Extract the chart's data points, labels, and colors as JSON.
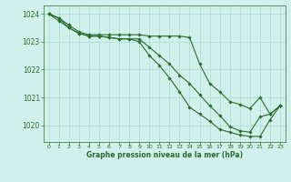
{
  "title": "Graphe pression niveau de la mer (hPa)",
  "background_color": "#cff0eb",
  "grid_color": "#aaddd6",
  "line_color": "#2d6b2d",
  "xlim": [
    -0.5,
    23.5
  ],
  "ylim": [
    1019.4,
    1024.3
  ],
  "yticks": [
    1020,
    1021,
    1022,
    1023,
    1024
  ],
  "xticks": [
    0,
    1,
    2,
    3,
    4,
    5,
    6,
    7,
    8,
    9,
    10,
    11,
    12,
    13,
    14,
    15,
    16,
    17,
    18,
    19,
    20,
    21,
    22,
    23
  ],
  "series": [
    [
      1024.0,
      1023.85,
      1023.6,
      1023.35,
      1023.25,
      1023.25,
      1023.25,
      1023.25,
      1023.25,
      1023.25,
      1023.2,
      1023.2,
      1023.2,
      1023.2,
      1023.15,
      1022.2,
      1021.5,
      1021.2,
      1020.85,
      1020.75,
      1020.6,
      1021.0,
      1020.4,
      1020.7
    ],
    [
      1024.0,
      1023.75,
      1023.5,
      1023.3,
      1023.2,
      1023.2,
      1023.15,
      1023.1,
      1023.1,
      1023.1,
      1022.8,
      1022.5,
      1022.2,
      1021.8,
      1021.5,
      1021.1,
      1020.7,
      1020.35,
      1019.95,
      1019.8,
      1019.75,
      1020.3,
      1020.4,
      1020.7
    ],
    [
      1024.0,
      1023.85,
      1023.5,
      1023.3,
      1023.2,
      1023.2,
      1023.15,
      1023.1,
      1023.1,
      1023.0,
      1022.5,
      1022.15,
      1021.7,
      1021.2,
      1020.65,
      1020.4,
      1020.15,
      1019.85,
      1019.75,
      1019.65,
      1019.6,
      1019.6,
      1020.2,
      1020.7
    ]
  ]
}
